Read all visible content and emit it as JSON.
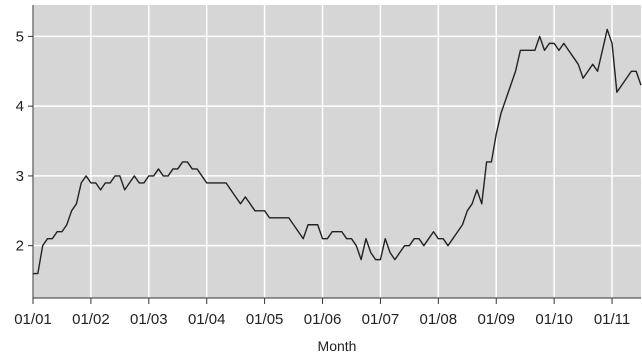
{
  "chart_data": {
    "type": "line",
    "title": "",
    "xlabel": "Month",
    "ylabel": "",
    "grid": true,
    "colors": {
      "plot_bg": "#d6d6d6",
      "grid": "#ffffff",
      "line": "#222222",
      "axis": "#333333",
      "text": "#222222"
    },
    "xlim": [
      "2001-01",
      "2011-07"
    ],
    "ylim": [
      1.25,
      5.45
    ],
    "x_ticks": [
      {
        "date": "2001-01",
        "label": "01/01"
      },
      {
        "date": "2002-01",
        "label": "01/02"
      },
      {
        "date": "2003-01",
        "label": "01/03"
      },
      {
        "date": "2004-01",
        "label": "01/04"
      },
      {
        "date": "2005-01",
        "label": "01/05"
      },
      {
        "date": "2006-01",
        "label": "01/06"
      },
      {
        "date": "2007-01",
        "label": "01/07"
      },
      {
        "date": "2008-01",
        "label": "01/08"
      },
      {
        "date": "2009-01",
        "label": "01/09"
      },
      {
        "date": "2010-01",
        "label": "01/10"
      },
      {
        "date": "2011-01",
        "label": "01/11"
      }
    ],
    "y_ticks": [
      {
        "value": 2,
        "label": "2"
      },
      {
        "value": 3,
        "label": "3"
      },
      {
        "value": 4,
        "label": "4"
      },
      {
        "value": 5,
        "label": "5"
      }
    ],
    "series": [
      {
        "points": [
          [
            "2001-01",
            1.6
          ],
          [
            "2001-02",
            1.6
          ],
          [
            "2001-03",
            2.0
          ],
          [
            "2001-04",
            2.1
          ],
          [
            "2001-05",
            2.1
          ],
          [
            "2001-06",
            2.2
          ],
          [
            "2001-07",
            2.2
          ],
          [
            "2001-08",
            2.3
          ],
          [
            "2001-09",
            2.5
          ],
          [
            "2001-10",
            2.6
          ],
          [
            "2001-11",
            2.9
          ],
          [
            "2001-12",
            3.0
          ],
          [
            "2002-01",
            2.9
          ],
          [
            "2002-02",
            2.9
          ],
          [
            "2002-03",
            2.8
          ],
          [
            "2002-04",
            2.9
          ],
          [
            "2002-05",
            2.9
          ],
          [
            "2002-06",
            3.0
          ],
          [
            "2002-07",
            3.0
          ],
          [
            "2002-08",
            2.8
          ],
          [
            "2002-09",
            2.9
          ],
          [
            "2002-10",
            3.0
          ],
          [
            "2002-11",
            2.9
          ],
          [
            "2002-12",
            2.9
          ],
          [
            "2003-01",
            3.0
          ],
          [
            "2003-02",
            3.0
          ],
          [
            "2003-03",
            3.1
          ],
          [
            "2003-04",
            3.0
          ],
          [
            "2003-05",
            3.0
          ],
          [
            "2003-06",
            3.1
          ],
          [
            "2003-07",
            3.1
          ],
          [
            "2003-08",
            3.2
          ],
          [
            "2003-09",
            3.2
          ],
          [
            "2003-10",
            3.1
          ],
          [
            "2003-11",
            3.1
          ],
          [
            "2003-12",
            3.0
          ],
          [
            "2004-01",
            2.9
          ],
          [
            "2004-02",
            2.9
          ],
          [
            "2004-03",
            2.9
          ],
          [
            "2004-04",
            2.9
          ],
          [
            "2004-05",
            2.9
          ],
          [
            "2004-06",
            2.8
          ],
          [
            "2004-07",
            2.7
          ],
          [
            "2004-08",
            2.6
          ],
          [
            "2004-09",
            2.7
          ],
          [
            "2004-10",
            2.6
          ],
          [
            "2004-11",
            2.5
          ],
          [
            "2004-12",
            2.5
          ],
          [
            "2005-01",
            2.5
          ],
          [
            "2005-02",
            2.4
          ],
          [
            "2005-03",
            2.4
          ],
          [
            "2005-04",
            2.4
          ],
          [
            "2005-05",
            2.4
          ],
          [
            "2005-06",
            2.4
          ],
          [
            "2005-07",
            2.3
          ],
          [
            "2005-08",
            2.2
          ],
          [
            "2005-09",
            2.1
          ],
          [
            "2005-10",
            2.3
          ],
          [
            "2005-11",
            2.3
          ],
          [
            "2005-12",
            2.3
          ],
          [
            "2006-01",
            2.1
          ],
          [
            "2006-02",
            2.1
          ],
          [
            "2006-03",
            2.2
          ],
          [
            "2006-04",
            2.2
          ],
          [
            "2006-05",
            2.2
          ],
          [
            "2006-06",
            2.1
          ],
          [
            "2006-07",
            2.1
          ],
          [
            "2006-08",
            2.0
          ],
          [
            "2006-09",
            1.8
          ],
          [
            "2006-10",
            2.1
          ],
          [
            "2006-11",
            1.9
          ],
          [
            "2006-12",
            1.8
          ],
          [
            "2007-01",
            1.8
          ],
          [
            "2007-02",
            2.1
          ],
          [
            "2007-03",
            1.9
          ],
          [
            "2007-04",
            1.8
          ],
          [
            "2007-05",
            1.9
          ],
          [
            "2007-06",
            2.0
          ],
          [
            "2007-07",
            2.0
          ],
          [
            "2007-08",
            2.1
          ],
          [
            "2007-09",
            2.1
          ],
          [
            "2007-10",
            2.0
          ],
          [
            "2007-11",
            2.1
          ],
          [
            "2007-12",
            2.2
          ],
          [
            "2008-01",
            2.1
          ],
          [
            "2008-02",
            2.1
          ],
          [
            "2008-03",
            2.0
          ],
          [
            "2008-04",
            2.1
          ],
          [
            "2008-05",
            2.2
          ],
          [
            "2008-06",
            2.3
          ],
          [
            "2008-07",
            2.5
          ],
          [
            "2008-08",
            2.6
          ],
          [
            "2008-09",
            2.8
          ],
          [
            "2008-10",
            2.6
          ],
          [
            "2008-11",
            3.2
          ],
          [
            "2008-12",
            3.2
          ],
          [
            "2009-01",
            3.6
          ],
          [
            "2009-02",
            3.9
          ],
          [
            "2009-03",
            4.1
          ],
          [
            "2009-04",
            4.3
          ],
          [
            "2009-05",
            4.5
          ],
          [
            "2009-06",
            4.8
          ],
          [
            "2009-07",
            4.8
          ],
          [
            "2009-08",
            4.8
          ],
          [
            "2009-09",
            4.8
          ],
          [
            "2009-10",
            5.0
          ],
          [
            "2009-11",
            4.8
          ],
          [
            "2009-12",
            4.9
          ],
          [
            "2010-01",
            4.9
          ],
          [
            "2010-02",
            4.8
          ],
          [
            "2010-03",
            4.9
          ],
          [
            "2010-04",
            4.8
          ],
          [
            "2010-05",
            4.7
          ],
          [
            "2010-06",
            4.6
          ],
          [
            "2010-07",
            4.4
          ],
          [
            "2010-08",
            4.5
          ],
          [
            "2010-09",
            4.6
          ],
          [
            "2010-10",
            4.5
          ],
          [
            "2010-11",
            4.8
          ],
          [
            "2010-12",
            5.1
          ],
          [
            "2011-01",
            4.9
          ],
          [
            "2011-02",
            4.2
          ],
          [
            "2011-03",
            4.3
          ],
          [
            "2011-04",
            4.4
          ],
          [
            "2011-05",
            4.5
          ],
          [
            "2011-06",
            4.5
          ],
          [
            "2011-07",
            4.3
          ]
        ]
      }
    ]
  }
}
